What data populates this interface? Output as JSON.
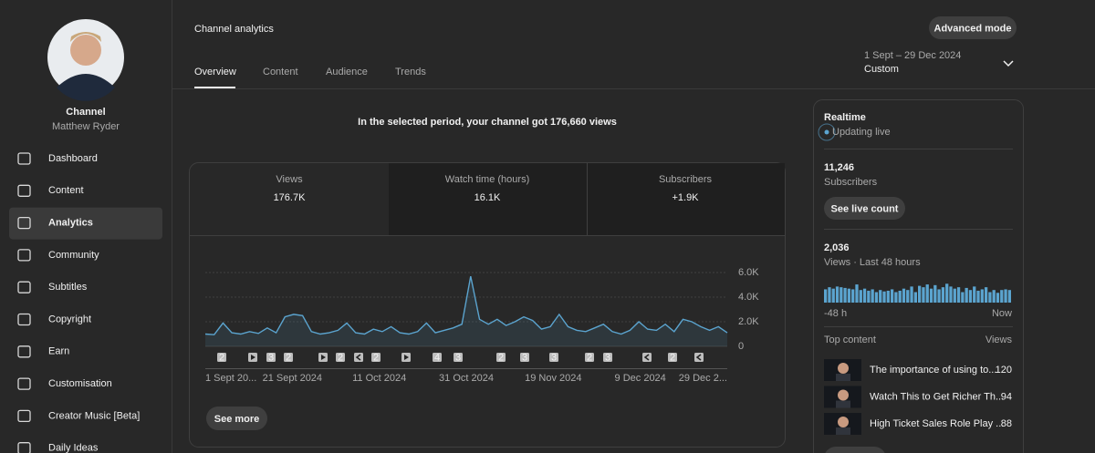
{
  "sidebar": {
    "channel_label": "Channel",
    "channel_name": "Matthew Ryder",
    "nav": [
      "Dashboard",
      "Content",
      "Analytics",
      "Community",
      "Subtitles",
      "Copyright",
      "Earn",
      "Customisation",
      "Creator Music [Beta]",
      "Daily Ideas"
    ],
    "active": 2
  },
  "header": {
    "title": "Channel analytics",
    "button": "Advanced mode",
    "tabs": [
      "Overview",
      "Content",
      "Audience",
      "Trends"
    ],
    "active_tab": 0,
    "date_range": "1 Sept – 29 Dec 2024",
    "date_preset": "Custom"
  },
  "headline": "In the selected period, your channel got 176,660 views",
  "metrics": [
    {
      "label": "Views",
      "value": "176.7K"
    },
    {
      "label": "Watch time (hours)",
      "value": "16.1K"
    },
    {
      "label": "Subscribers",
      "value": "+1.9K"
    }
  ],
  "chart": {
    "type": "line",
    "color": "#5ba4cf",
    "values": [
      1000,
      950,
      1900,
      1100,
      1000,
      1200,
      1050,
      1500,
      1100,
      2400,
      2600,
      2500,
      1200,
      1000,
      1100,
      1300,
      1900,
      1100,
      1000,
      1400,
      1200,
      1600,
      1100,
      1000,
      1200,
      1900,
      1100,
      1300,
      1500,
      1800,
      5700,
      2200,
      1800,
      2200,
      1700,
      2000,
      2400,
      2100,
      1400,
      1600,
      2600,
      1600,
      1300,
      1200,
      1500,
      1800,
      1200,
      1000,
      1300,
      2000,
      1400,
      1300,
      1800,
      1200,
      2200,
      2000,
      1600,
      1300,
      1600,
      1100
    ],
    "x_labels": [
      "1 Sept 20...",
      "21 Sept 2024",
      "11 Oct 2024",
      "31 Oct 2024",
      "19 Nov 2024",
      "9 Dec 2024",
      "29 Dec 2..."
    ],
    "ylim": [
      0,
      6000
    ],
    "yticks": [
      0,
      {
        "value": 2000,
        "label": "2.0K"
      },
      {
        "value": 4000,
        "label": "4.0K"
      },
      {
        "value": 6000,
        "label": "6.0K"
      }
    ],
    "grid": true,
    "markers": [
      {
        "kind": "count",
        "label": "2"
      },
      {
        "kind": "video"
      },
      {
        "kind": "count",
        "label": "3"
      },
      {
        "kind": "count",
        "label": "2"
      },
      {
        "kind": "video"
      },
      {
        "kind": "count",
        "label": "2"
      },
      {
        "kind": "short"
      },
      {
        "kind": "count",
        "label": "2"
      },
      {
        "kind": "video"
      },
      {
        "kind": "count",
        "label": "4"
      },
      {
        "kind": "count",
        "label": "3"
      },
      {
        "kind": "count",
        "label": "2"
      },
      {
        "kind": "count",
        "label": "3"
      },
      {
        "kind": "count",
        "label": "3"
      },
      {
        "kind": "count",
        "label": "2"
      },
      {
        "kind": "count",
        "label": "3"
      },
      {
        "kind": "short"
      },
      {
        "kind": "count",
        "label": "2"
      },
      {
        "kind": "short"
      }
    ],
    "button": "See more"
  },
  "realtime": {
    "title": "Realtime",
    "status": "Updating live",
    "subscribers": "11,246",
    "subscribers_label": "Subscribers",
    "button": "See live count",
    "views": "2,036",
    "views_label": "Views · Last 48 hours",
    "bars": {
      "type": "bar",
      "color": "#5ba4cf",
      "values": [
        38,
        44,
        40,
        46,
        44,
        42,
        40,
        38,
        52,
        36,
        40,
        34,
        38,
        30,
        36,
        32,
        34,
        38,
        30,
        34,
        40,
        36,
        46,
        30,
        48,
        44,
        52,
        40,
        50,
        38,
        44,
        54,
        46,
        40,
        44,
        30,
        42,
        36,
        46,
        34,
        38,
        44,
        30,
        36,
        28,
        36,
        38,
        36
      ],
      "start_label": "-48 h",
      "end_label": "Now"
    },
    "top_content_label": "Top content",
    "top_views_label": "Views",
    "top_content": [
      {
        "title": "The importance of using to...",
        "views": "120"
      },
      {
        "title": "Watch This to Get Richer Th...",
        "views": "94"
      },
      {
        "title": "High Ticket Sales Role Play ...",
        "views": "88"
      }
    ]
  }
}
